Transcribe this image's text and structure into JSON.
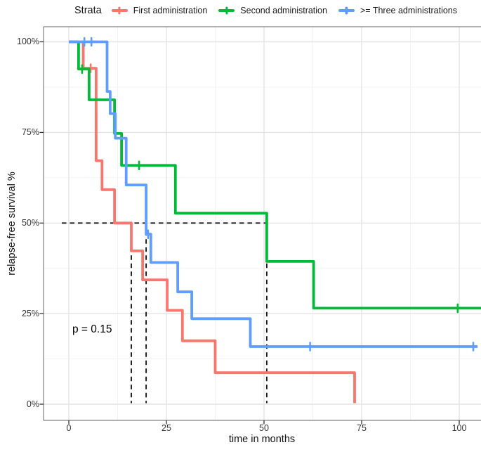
{
  "legend_title": "Strata",
  "p_value_text": "p = 0.15",
  "axes": {
    "x_title": "time in months",
    "y_title": "relapse-free survival %",
    "x_tick_values": [
      0,
      25,
      50,
      75,
      100
    ],
    "x_tick_labels": [
      "0",
      "25",
      "50",
      "75",
      "100"
    ],
    "y_tick_values": [
      0,
      25,
      50,
      75,
      100
    ],
    "y_tick_labels": [
      "0%",
      "25%",
      "50%",
      "75%",
      "100%"
    ]
  },
  "chart_data": {
    "type": "line",
    "subtype": "kaplan-meier-step",
    "title": "",
    "xlabel": "time in months",
    "ylabel": "relapse-free survival %",
    "xlim_months": [
      -6.5,
      105.6
    ],
    "ylim_pct": [
      0,
      100
    ],
    "grid": "on",
    "legend_position": "top",
    "p_value": "p = 0.15",
    "series": [
      {
        "name": "First administration",
        "color": "#F8766D",
        "start": [
          0,
          100
        ],
        "steps": [
          [
            3.7,
            92.7
          ],
          [
            7.0,
            67.2
          ],
          [
            8.5,
            59.2
          ],
          [
            11.7,
            50.0
          ],
          [
            16.0,
            42.3
          ],
          [
            18.9,
            34.3
          ],
          [
            25.2,
            25.9
          ],
          [
            29.1,
            17.5
          ],
          [
            37.5,
            8.7
          ],
          [
            73.2,
            0.3
          ]
        ],
        "end_t": 73.2,
        "censors": [
          [
            5.6,
            92.7
          ]
        ]
      },
      {
        "name": "Second administration",
        "color": "#00BA38",
        "start": [
          0,
          100
        ],
        "steps": [
          [
            2.5,
            92.5
          ],
          [
            5.2,
            84.0
          ],
          [
            11.7,
            74.7
          ],
          [
            13.5,
            65.9
          ],
          [
            27.3,
            52.7
          ],
          [
            50.7,
            39.4
          ],
          [
            62.7,
            26.5
          ]
        ],
        "end_t": 105.6,
        "censors": [
          [
            3.4,
            92.5
          ],
          [
            18.0,
            65.9
          ],
          [
            99.6,
            26.5
          ]
        ]
      },
      {
        "name": ">= Three administrations",
        "color": "#619CFF",
        "start": [
          0,
          100
        ],
        "steps": [
          [
            9.8,
            86.3
          ],
          [
            10.6,
            80.2
          ],
          [
            11.9,
            73.4
          ],
          [
            14.7,
            60.5
          ],
          [
            19.8,
            46.9
          ],
          [
            21.0,
            39.1
          ],
          [
            27.9,
            31.0
          ],
          [
            31.5,
            23.6
          ],
          [
            46.5,
            15.9
          ]
        ],
        "end_t": 104.7,
        "censors": [
          [
            4.0,
            100
          ],
          [
            5.8,
            100
          ],
          [
            20.3,
            46.9
          ],
          [
            61.8,
            15.9
          ],
          [
            103.6,
            15.9
          ]
        ]
      }
    ],
    "median_guides": {
      "survival_pct": 50,
      "h_from_t": -1.8,
      "h_to_t": 50.7,
      "v_times": [
        16.0,
        19.8,
        50.7
      ],
      "v_bottom_pct": 0.3
    }
  }
}
